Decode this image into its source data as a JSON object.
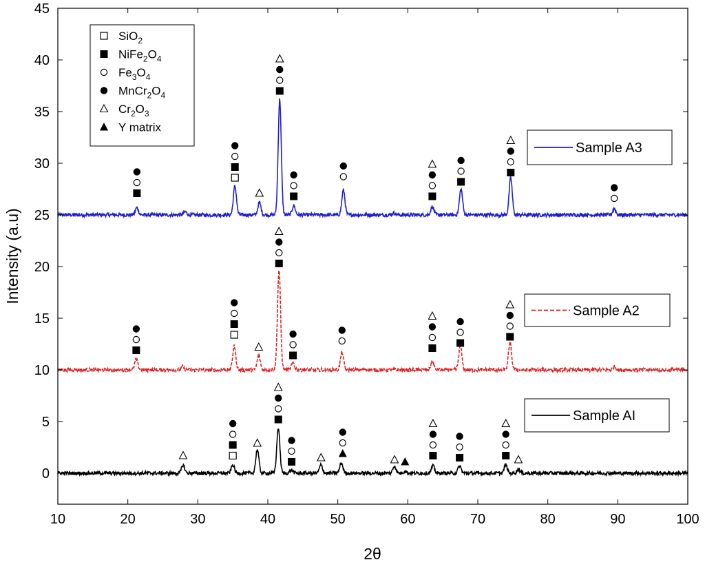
{
  "chart_data": {
    "type": "line",
    "xlabel": "2θ",
    "ylabel": "Intensity (a.u)",
    "xlim": [
      10,
      100
    ],
    "ylim": [
      -3,
      45
    ],
    "xticks": [
      10,
      20,
      30,
      40,
      50,
      60,
      70,
      80,
      90,
      100
    ],
    "yticks": [
      0,
      5,
      10,
      15,
      20,
      25,
      30,
      35,
      40,
      45
    ],
    "grid": false,
    "phase_legend": {
      "placement": "top-left",
      "items": [
        {
          "marker": "open-square",
          "label": "SiO",
          "sub": "2",
          "label_tail": ""
        },
        {
          "marker": "filled-square",
          "label": "NiFe",
          "sub": "2",
          "label_tail": "O",
          "sub2": "4"
        },
        {
          "marker": "open-circle",
          "label": "Fe",
          "sub": "3",
          "label_tail": "O",
          "sub2": "4"
        },
        {
          "marker": "filled-circle",
          "label": "MnCr",
          "sub": "2",
          "label_tail": "O",
          "sub2": "4"
        },
        {
          "marker": "open-triangle",
          "label": "Cr",
          "sub": "2",
          "label_tail": "O",
          "sub2": "3"
        },
        {
          "marker": "filled-triangle",
          "label": "Y matrix",
          "sub": "",
          "label_tail": ""
        }
      ]
    },
    "series": [
      {
        "name": "Sample A3",
        "color": "#1f1fd0",
        "dash": "solid",
        "baseline": 25,
        "peaks": [
          {
            "x": 21.3,
            "h": 0.7
          },
          {
            "x": 28.2,
            "h": 0.3
          },
          {
            "x": 35.3,
            "h": 2.8
          },
          {
            "x": 38.8,
            "h": 1.2
          },
          {
            "x": 41.7,
            "h": 11.2
          },
          {
            "x": 43.7,
            "h": 0.9
          },
          {
            "x": 50.8,
            "h": 2.4
          },
          {
            "x": 58.0,
            "h": 0.2
          },
          {
            "x": 63.5,
            "h": 0.8
          },
          {
            "x": 67.6,
            "h": 2.5
          },
          {
            "x": 74.7,
            "h": 3.6
          },
          {
            "x": 89.5,
            "h": 0.6
          }
        ],
        "markers": [
          {
            "x": 21.3,
            "stack": [
              "filled-square",
              "open-circle",
              "filled-circle"
            ],
            "y0": 27.1
          },
          {
            "x": 35.3,
            "stack": [
              "open-square",
              "filled-square",
              "open-circle",
              "filled-circle"
            ],
            "y0": 28.6
          },
          {
            "x": 38.8,
            "stack": [
              "open-triangle"
            ],
            "y0": 27.1
          },
          {
            "x": 41.7,
            "stack": [
              "filled-square",
              "open-circle",
              "filled-circle",
              "open-triangle"
            ],
            "y0": 37.0
          },
          {
            "x": 43.7,
            "stack": [
              "filled-square",
              "open-circle",
              "filled-circle"
            ],
            "y0": 26.8
          },
          {
            "x": 50.8,
            "stack": [
              "open-circle",
              "filled-circle"
            ],
            "y0": 28.7
          },
          {
            "x": 63.5,
            "stack": [
              "filled-square",
              "open-circle",
              "filled-circle",
              "open-triangle"
            ],
            "y0": 26.8
          },
          {
            "x": 67.6,
            "stack": [
              "filled-square",
              "open-circle",
              "filled-circle"
            ],
            "y0": 28.2
          },
          {
            "x": 74.7,
            "stack": [
              "filled-square",
              "open-circle",
              "filled-circle",
              "open-triangle"
            ],
            "y0": 29.1
          },
          {
            "x": 89.5,
            "stack": [
              "open-circle",
              "filled-circle"
            ],
            "y0": 26.6
          }
        ]
      },
      {
        "name": "Sample A2",
        "color": "#e02020",
        "dash": "dashed",
        "baseline": 10,
        "peaks": [
          {
            "x": 21.2,
            "h": 1.0
          },
          {
            "x": 27.8,
            "h": 0.3
          },
          {
            "x": 35.2,
            "h": 2.3
          },
          {
            "x": 38.7,
            "h": 1.4
          },
          {
            "x": 41.6,
            "h": 9.7
          },
          {
            "x": 43.6,
            "h": 0.7
          },
          {
            "x": 50.6,
            "h": 1.7
          },
          {
            "x": 63.5,
            "h": 0.8
          },
          {
            "x": 67.5,
            "h": 2.3
          },
          {
            "x": 74.6,
            "h": 2.6
          },
          {
            "x": 89.5,
            "h": 0.3
          }
        ],
        "markers": [
          {
            "x": 21.2,
            "stack": [
              "filled-square",
              "open-circle",
              "filled-circle"
            ],
            "y0": 11.9
          },
          {
            "x": 35.2,
            "stack": [
              "open-square",
              "filled-square",
              "open-circle",
              "filled-circle"
            ],
            "y0": 13.4
          },
          {
            "x": 38.7,
            "stack": [
              "open-triangle"
            ],
            "y0": 12.2
          },
          {
            "x": 41.6,
            "stack": [
              "filled-square",
              "open-circle",
              "filled-circle",
              "open-triangle"
            ],
            "y0": 20.3
          },
          {
            "x": 43.6,
            "stack": [
              "filled-square",
              "open-circle",
              "filled-circle"
            ],
            "y0": 11.4
          },
          {
            "x": 50.6,
            "stack": [
              "open-circle",
              "filled-circle"
            ],
            "y0": 12.8
          },
          {
            "x": 63.5,
            "stack": [
              "filled-square",
              "open-circle",
              "filled-circle",
              "open-triangle"
            ],
            "y0": 12.1
          },
          {
            "x": 67.5,
            "stack": [
              "filled-square",
              "open-circle",
              "filled-circle"
            ],
            "y0": 12.6
          },
          {
            "x": 74.6,
            "stack": [
              "filled-square",
              "open-circle",
              "filled-circle",
              "open-triangle"
            ],
            "y0": 13.2
          }
        ]
      },
      {
        "name": "Sample AI",
        "color": "#000000",
        "dash": "solid",
        "baseline": 0,
        "peaks": [
          {
            "x": 27.9,
            "h": 0.8
          },
          {
            "x": 35.0,
            "h": 0.8
          },
          {
            "x": 38.5,
            "h": 2.3
          },
          {
            "x": 41.5,
            "h": 4.4
          },
          {
            "x": 43.4,
            "h": 0.3
          },
          {
            "x": 47.6,
            "h": 0.8
          },
          {
            "x": 50.5,
            "h": 1.0
          },
          {
            "x": 58.1,
            "h": 0.7
          },
          {
            "x": 59.6,
            "h": 0.2
          },
          {
            "x": 63.6,
            "h": 0.7
          },
          {
            "x": 67.4,
            "h": 0.7
          },
          {
            "x": 74.0,
            "h": 0.8
          },
          {
            "x": 75.8,
            "h": 0.4
          }
        ],
        "markers": [
          {
            "x": 27.9,
            "stack": [
              "open-triangle"
            ],
            "y0": 1.7
          },
          {
            "x": 35.0,
            "stack": [
              "open-square",
              "filled-square",
              "open-circle",
              "filled-circle"
            ],
            "y0": 1.7
          },
          {
            "x": 38.5,
            "stack": [
              "open-triangle"
            ],
            "y0": 2.9
          },
          {
            "x": 41.5,
            "stack": [
              "filled-square",
              "open-circle",
              "filled-circle",
              "open-triangle"
            ],
            "y0": 5.2
          },
          {
            "x": 43.4,
            "stack": [
              "filled-square",
              "open-circle",
              "filled-circle"
            ],
            "y0": 1.1
          },
          {
            "x": 47.6,
            "stack": [
              "open-triangle"
            ],
            "y0": 1.5
          },
          {
            "x": 50.7,
            "stack": [
              "filled-triangle",
              "open-circle",
              "filled-circle"
            ],
            "y0": 1.9
          },
          {
            "x": 58.1,
            "stack": [
              "open-triangle"
            ],
            "y0": 1.3
          },
          {
            "x": 59.6,
            "stack": [
              "filled-triangle"
            ],
            "y0": 1.1
          },
          {
            "x": 63.6,
            "stack": [
              "filled-square",
              "open-circle",
              "filled-circle",
              "open-triangle"
            ],
            "y0": 1.7
          },
          {
            "x": 67.4,
            "stack": [
              "filled-square",
              "open-circle",
              "filled-circle"
            ],
            "y0": 1.5
          },
          {
            "x": 74.0,
            "stack": [
              "filled-square",
              "open-circle",
              "filled-circle",
              "open-triangle"
            ],
            "y0": 1.7
          },
          {
            "x": 75.8,
            "stack": [
              "open-triangle"
            ],
            "y0": 1.3
          }
        ]
      }
    ]
  }
}
